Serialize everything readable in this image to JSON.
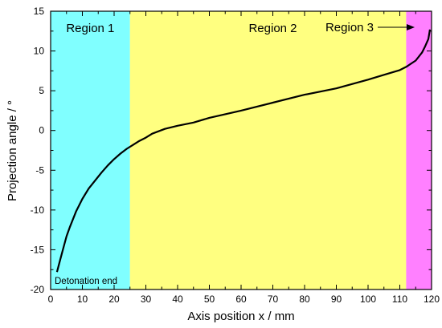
{
  "chart_data": {
    "type": "line",
    "title": "",
    "xlabel": "Axis position x / mm",
    "ylabel": "Projection angle / °",
    "xlim": [
      0,
      120
    ],
    "ylim": [
      -20,
      15
    ],
    "x_ticks": [
      0,
      10,
      20,
      30,
      40,
      50,
      60,
      70,
      80,
      90,
      100,
      110,
      120
    ],
    "y_ticks": [
      -20,
      -15,
      -10,
      -5,
      0,
      5,
      10,
      15
    ],
    "grid": false,
    "regions": [
      {
        "label": "Region 1",
        "x_start": 0,
        "x_end": 25,
        "color": "#80FFFF"
      },
      {
        "label": "Region 2",
        "x_start": 25,
        "x_end": 112,
        "color": "#FFFF80"
      },
      {
        "label": "Region 3",
        "x_start": 112,
        "x_end": 120,
        "color": "#FF80FF"
      }
    ],
    "annotations": [
      {
        "text": "Detonation end",
        "x": 0.5,
        "y": -19
      }
    ],
    "series": [
      {
        "color": "#000000",
        "x": [
          2,
          3,
          4,
          5,
          6,
          8,
          10,
          12,
          14,
          16,
          18,
          20,
          22,
          24,
          26,
          28,
          30,
          32,
          34,
          36,
          40,
          45,
          50,
          60,
          70,
          80,
          90,
          100,
          105,
          110,
          112,
          115,
          117,
          118,
          119,
          119.5
        ],
        "y": [
          -17.8,
          -16.3,
          -14.8,
          -13.3,
          -12.2,
          -10.2,
          -8.6,
          -7.3,
          -6.3,
          -5.3,
          -4.4,
          -3.6,
          -2.9,
          -2.3,
          -1.8,
          -1.3,
          -0.9,
          -0.4,
          -0.1,
          0.2,
          0.6,
          1.0,
          1.6,
          2.5,
          3.5,
          4.5,
          5.3,
          6.4,
          7.0,
          7.6,
          8.0,
          8.8,
          9.8,
          10.6,
          11.5,
          12.7
        ]
      }
    ]
  }
}
